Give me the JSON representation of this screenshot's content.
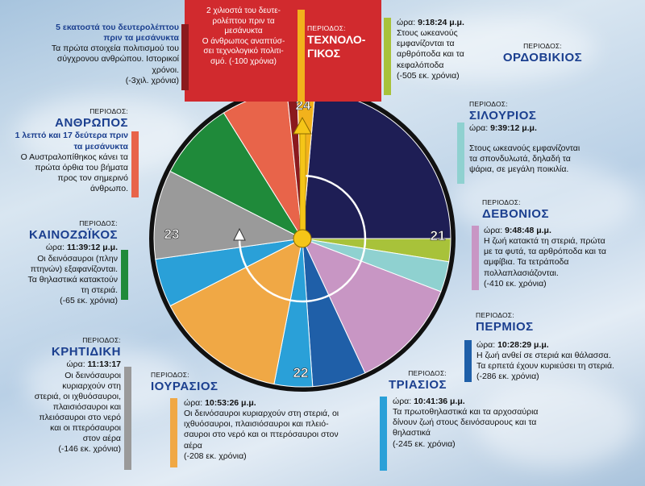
{
  "periods": [
    {
      "key": "technologikos",
      "caption": "ΠΕΡΙΟΔΟΣ:",
      "name_line1": "ΤΕΧΝΟΛΟ-",
      "name_line2": "ΓΙΚΟΣ",
      "lines": [
        "2 χιλιοστά του δευτε-",
        "ρολέπτου πριν τα",
        "μεσάνυκτα",
        "Ο άνθρωπος αναπτύσ-",
        "σει τεχνολογικό πολιτι-",
        "σμό. (-100 χρόνια)"
      ],
      "color": "#f2b21c"
    },
    {
      "key": "istoriki",
      "lines": [
        "5 εκατοστά του δευτερολέπτου",
        "πριν τα μεσάνυκτα",
        "Τα πρώτα στοιχεία πολιτισμού του",
        "σύγχρονου ανθρώπου. Ιστορικοί",
        "χρόνοι.",
        "(-3χιλ. χρόνια)"
      ],
      "color": "#8b1a1e"
    },
    {
      "key": "anthropos",
      "caption": "ΠΕΡΙΟΔΟΣ:",
      "name": "ΑΝΘΡΩΠΟΣ",
      "lines": [
        "1 λεπτό και 17 δεύτερα πριν",
        "τα μεσάνυκτα",
        "Ο Αυστραλοπίθηκος κάνει τα",
        "πρώτα όρθια του βήματα",
        "προς τον σημερινό",
        "άνθρωπο."
      ],
      "color": "#e8644a"
    },
    {
      "key": "kainozoikos",
      "caption": "ΠΕΡΙΟΔΟΣ:",
      "name": "ΚΑΙΝΟΖΩΪΚΟΣ",
      "time_label": "ώρα:",
      "time": "11:39:12 μ.μ.",
      "lines": [
        "Οι δεινόσαυροι (πλην",
        "πτηνών) εξαφανίζονται.",
        "Τα θηλαστικά κατακτούν",
        "τη στεριά.",
        "(-65 εκ. χρόνια)"
      ],
      "color": "#1f8a3a"
    },
    {
      "key": "kritidiki",
      "caption": "ΠΕΡΙΟΔΟΣ:",
      "name": "ΚΡΗΤΙΔΙΚΗ",
      "time_label": "ώρα:",
      "time": "11:13:17",
      "lines": [
        "Οι δεινόσαυροι",
        "κυριαρχούν στη",
        "στεριά, οι ιχθυόσαυροι,",
        "πλαισιόσαυροι και",
        "πλειόσαυροι στο νερό",
        "και οι πτερόσαυροι",
        "στον αέρα",
        "(-146 εκ. χρόνια)"
      ],
      "color": "#9a9a9a"
    },
    {
      "key": "iourasios",
      "caption": "ΠΕΡΙΟΔΟΣ:",
      "name": "ΙΟΥΡΑΣΙΟΣ",
      "time_label": "ώρα:",
      "time": "10:53:26 μ.μ.",
      "lines": [
        "Οι δεινόσαυροι κυριαρχούν στη στεριά, οι",
        "ιχθυόσαυροι, πλαισιόσαυροι και πλειό-",
        "σαυροι στο νερό και οι πτερόσαυροι στον",
        "αέρα",
        "(-208 εκ. χρόνια)"
      ],
      "color": "#f0a845"
    },
    {
      "key": "triasios",
      "caption": "ΠΕΡΙΟΔΟΣ:",
      "name": "ΤΡΙΑΣΙΟΣ",
      "time_label": "ώρα:",
      "time": "10:41:36 μ.μ.",
      "lines": [
        "Τα πρωτοθηλαστικά και τα αρχοσαύρια",
        "δίνουν ζωή στους δεινόσαυρους και τα",
        "θηλαστικά",
        "(-245 εκ. χρόνια)"
      ],
      "color": "#2aa0d8"
    },
    {
      "key": "permios",
      "caption": "ΠΕΡΙΟΔΟΣ:",
      "name": "ΠΕΡΜΙΟΣ",
      "time_label": "ώρα:",
      "time": "10:28:29 μ.μ.",
      "lines": [
        "Η ζωή ανθεί σε στεριά και θάλασσα.",
        "Τα ερπετά έχουν κυριεύσει τη στεριά.",
        "(-286 εκ. χρόνια)"
      ],
      "color": "#1f5fa8"
    },
    {
      "key": "devonios",
      "caption": "ΠΕΡΙΟΔΟΣ:",
      "name": "ΔΕΒΟΝΙΟΣ",
      "time_label": "ώρα:",
      "time": "9:48:48 μ.μ.",
      "lines": [
        "Η ζωή κατακτά τη στεριά, πρώτα",
        "με τα φυτά, τα αρθρόποδα και τα",
        "αμφίβια. Τα τετράποδα",
        "πολλαπλασιάζονται.",
        "(-410 εκ. χρόνια)"
      ],
      "color": "#c896c4"
    },
    {
      "key": "silourios",
      "caption": "ΠΕΡΙΟΔΟΣ:",
      "name": "ΣΙΛΟΥΡΙΟΣ",
      "time_label": "ώρα:",
      "time": "9:39:12 μ.μ.",
      "lines": [
        "Στους ωκεανούς εμφανίζονται",
        "τα σπονδυλωτά, δηλαδή τα",
        "ψάρια, σε μεγάλη ποικιλία."
      ],
      "color": "#8fd1d0"
    },
    {
      "key": "ordovikios",
      "caption": "ΠΕΡΙΟΔΟΣ:",
      "name": "ΟΡΔΟΒΙΚΙΟΣ",
      "time_label": "ώρα:",
      "time": "9:18:24 μ.μ.",
      "lines": [
        "Στους ωκεανούς",
        "εμφανίζονται τα",
        "αρθρόποδα και τα",
        "κεφαλόποδα",
        "(-505 εκ. χρόνια)"
      ],
      "color": "#a8c23a"
    }
  ],
  "clock": {
    "hours": [
      "24",
      "21",
      "22",
      "23"
    ],
    "dark_color": "#1e1e55"
  }
}
